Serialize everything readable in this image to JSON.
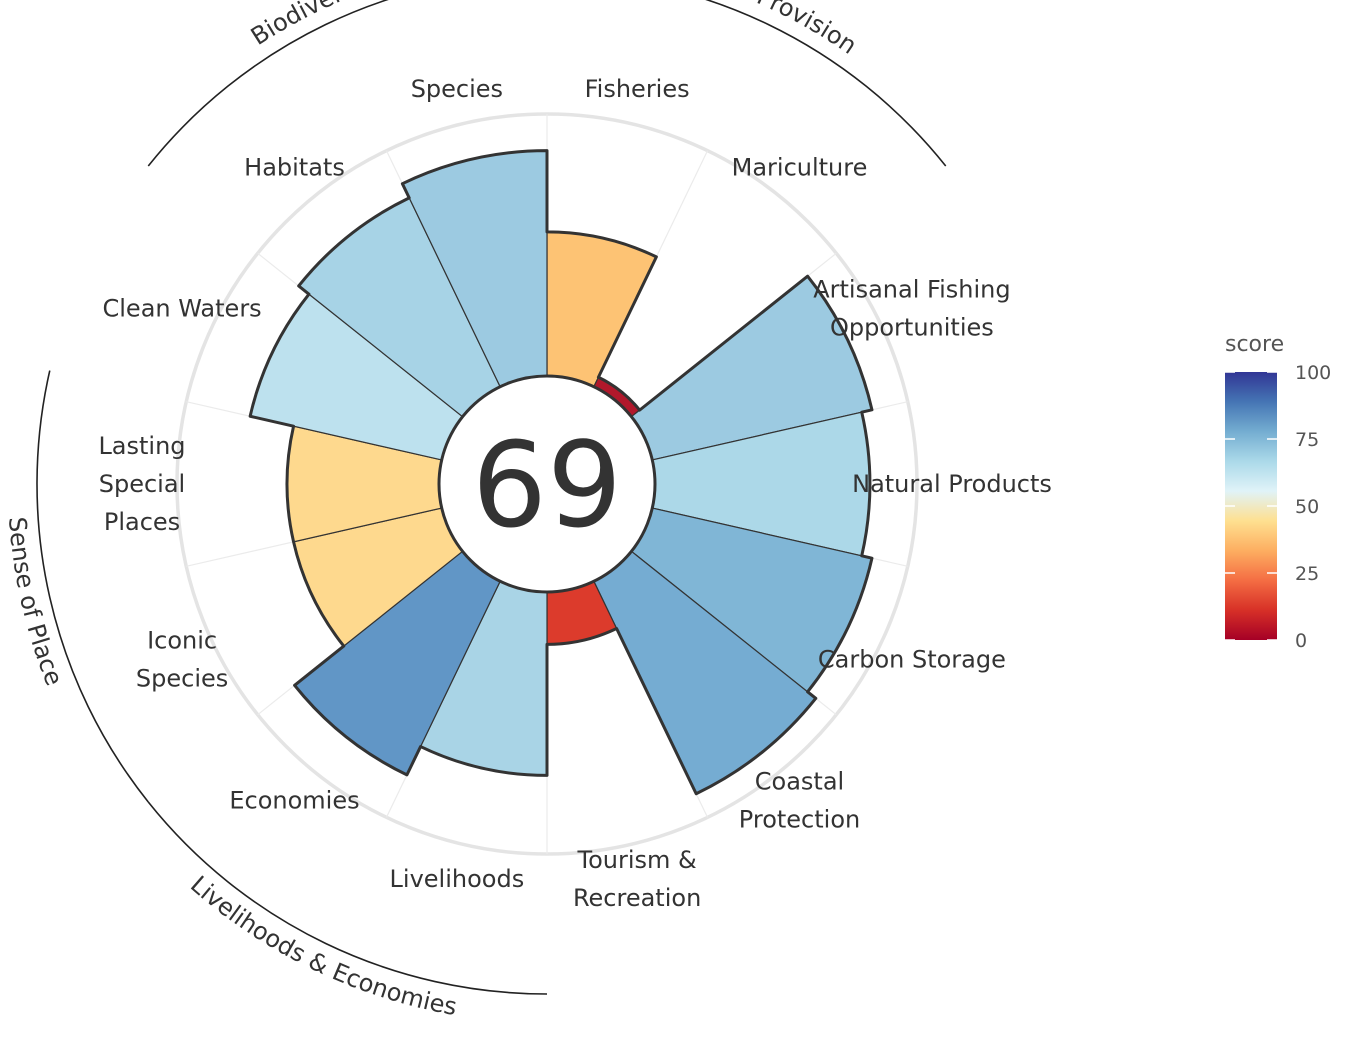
{
  "chart_data": {
    "type": "polar-bar",
    "center_score": "69",
    "rlim": [
      0,
      100
    ],
    "goals": [
      {
        "label": "Fisheries",
        "value": 55,
        "color": "#fdc374"
      },
      {
        "label": "Mariculture",
        "value": 4,
        "color": "#b1182b"
      },
      {
        "label": "Artisanal Fishing\nOpportunities",
        "value": 86,
        "color": "#9ccae1"
      },
      {
        "label": "Natural Products",
        "value": 82,
        "color": "#acd8e8"
      },
      {
        "label": "Carbon Storage",
        "value": 86,
        "color": "#80b6d6"
      },
      {
        "label": "Coastal\nProtection",
        "value": 90,
        "color": "#75acd2"
      },
      {
        "label": "Tourism &\nRecreation",
        "value": 20,
        "color": "#dc3b2c"
      },
      {
        "label": "Livelihoods",
        "value": 70,
        "color": "#a9d4e6"
      },
      {
        "label": "Economies",
        "value": 82,
        "color": "#6196c6"
      },
      {
        "label": "Iconic\nSpecies",
        "value": 58,
        "color": "#fed98e"
      },
      {
        "label": "Lasting\nSpecial\nPlaces",
        "value": 58,
        "color": "#fed98e"
      },
      {
        "label": "Clean Waters",
        "value": 75,
        "color": "#bde1ee"
      },
      {
        "label": "Habitats",
        "value": 80,
        "color": "#a7d3e6"
      },
      {
        "label": "Species",
        "value": 86,
        "color": "#9ccae1"
      }
    ],
    "groups": [
      {
        "label": "Food Provision"
      },
      {
        "label": "Biodiversity"
      },
      {
        "label": "Sense of Place"
      },
      {
        "label": "Livelihoods & Economies"
      }
    ],
    "legend": {
      "title": "score",
      "ticks": [
        "100",
        "75",
        "50",
        "25",
        "0"
      ],
      "gradient": [
        "#a50026",
        "#d73027",
        "#f46d43",
        "#fdae61",
        "#fee090",
        "#e0f3f8",
        "#abd9e9",
        "#74add1",
        "#4575b4",
        "#313695"
      ]
    }
  }
}
